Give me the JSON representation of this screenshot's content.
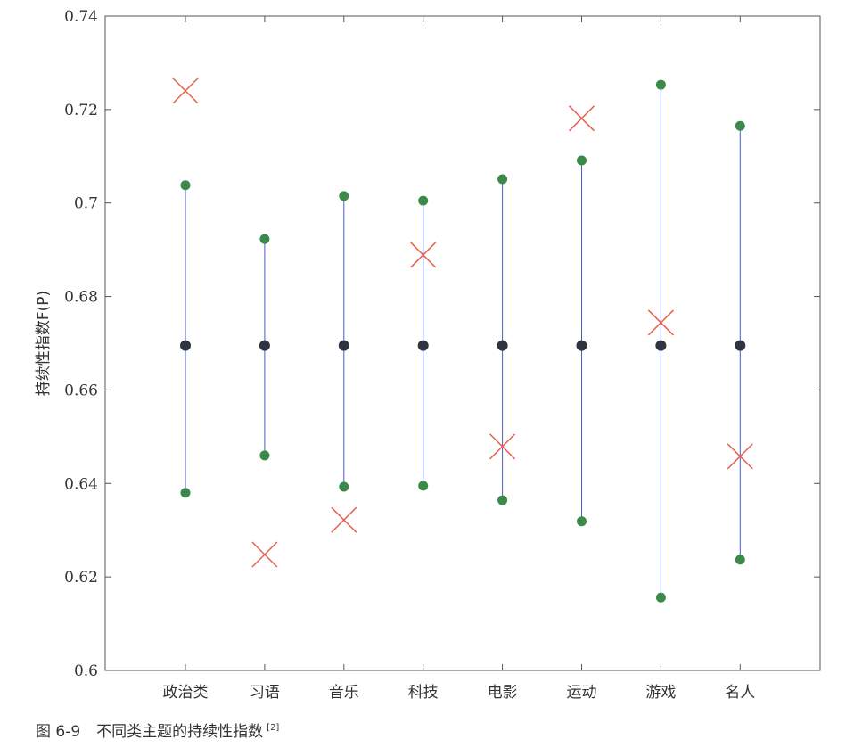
{
  "chart_data": {
    "type": "scatter",
    "ylabel": "持续性指数F(P)",
    "xlabel": "",
    "ylim": [
      0.6,
      0.74
    ],
    "yticks": [
      "0.6",
      "0.62",
      "0.64",
      "0.66",
      "0.68",
      "0.7",
      "0.72",
      "0.74"
    ],
    "categories": [
      "政治类",
      "习语",
      "音乐",
      "科技",
      "电影",
      "运动",
      "游戏",
      "名人"
    ],
    "mean": [
      0.6695,
      0.6695,
      0.6695,
      0.6695,
      0.6695,
      0.6695,
      0.6695,
      0.6695
    ],
    "upper": [
      0.7038,
      0.6923,
      0.7015,
      0.7005,
      0.7051,
      0.7091,
      0.7253,
      0.7165
    ],
    "lower": [
      0.638,
      0.646,
      0.6393,
      0.6395,
      0.6364,
      0.6319,
      0.6156,
      0.6237
    ],
    "observed": [
      0.724,
      0.6248,
      0.6322,
      0.6889,
      0.6479,
      0.7181,
      0.6744,
      0.6458
    ],
    "grid": false,
    "colors": {
      "mean": "#2f3440",
      "bound": "#3c8a4a",
      "line": "#4a5cc8",
      "observed": "#e8604c",
      "axis": "#555555"
    }
  },
  "caption": {
    "label": "图 6-9",
    "text": "不同类主题的持续性指数",
    "ref": "[2]"
  }
}
